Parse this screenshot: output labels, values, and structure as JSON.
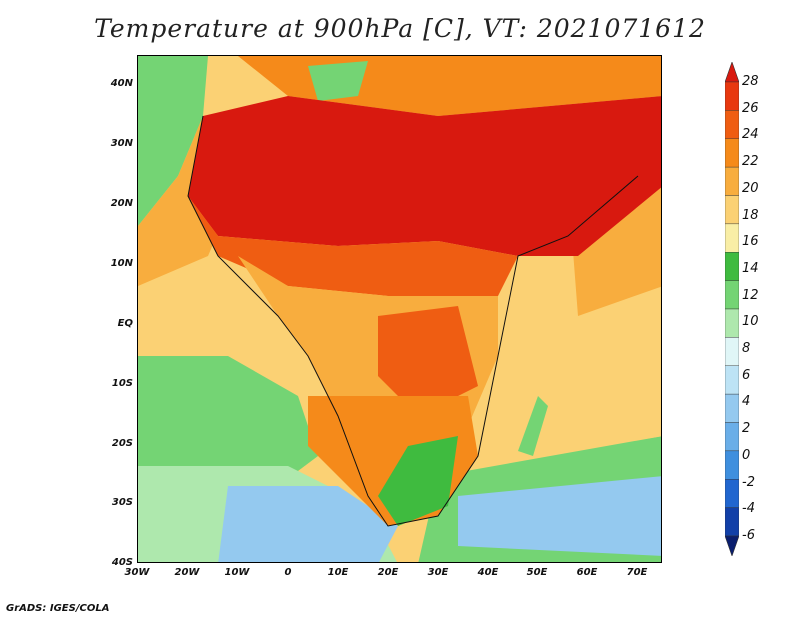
{
  "title": "Temperature at 900hPa [C], VT: 2021071612",
  "credit": "GrADS: IGES/COLA",
  "lat_labels": [
    "40N",
    "30N",
    "20N",
    "10N",
    "EQ",
    "10S",
    "20S",
    "30S",
    "40S"
  ],
  "lon_labels": [
    "30W",
    "20W",
    "10W",
    "0",
    "10E",
    "20E",
    "30E",
    "40E",
    "50E",
    "60E",
    "70E"
  ],
  "colorbar": {
    "labels": [
      "28",
      "26",
      "24",
      "22",
      "20",
      "18",
      "16",
      "14",
      "12",
      "10",
      "8",
      "6",
      "4",
      "2",
      "0",
      "-2",
      "-4",
      "-6"
    ],
    "colors": [
      "#d8190f",
      "#e8380f",
      "#ef5d12",
      "#f58a1a",
      "#f8ad3e",
      "#fbd174",
      "#f9eea6",
      "#3fbb3f",
      "#74d474",
      "#aee8ad",
      "#e0f6f7",
      "#bde3f5",
      "#94c9ef",
      "#6aaee8",
      "#3f8fde",
      "#2166cf",
      "#1240a8",
      "#0a1e6e"
    ]
  },
  "regions": [
    {
      "name": "ocean-cool-southwest",
      "color": "#aee8ad"
    },
    {
      "name": "ocean-cold-south",
      "color": "#94c9ef"
    },
    {
      "name": "sahara-hot",
      "color": "#d8190f"
    },
    {
      "name": "arabia-hot",
      "color": "#d8190f"
    },
    {
      "name": "sahel-warm",
      "color": "#ef5d12"
    },
    {
      "name": "central-africa-mild",
      "color": "#f8ad3e"
    },
    {
      "name": "southern-africa-cool",
      "color": "#3fbb3f"
    },
    {
      "name": "indian-ocean-mild",
      "color": "#fbd174"
    },
    {
      "name": "mediterranean-mild",
      "color": "#f58a1a"
    }
  ]
}
